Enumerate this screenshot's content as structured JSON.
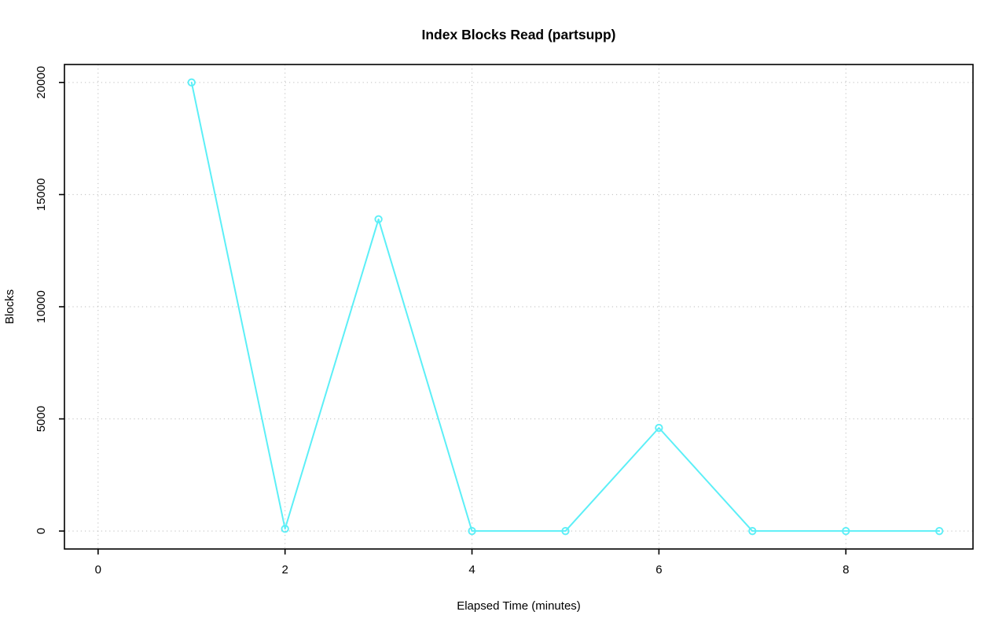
{
  "page": {
    "background": "#FFFFFF"
  },
  "chart_data": {
    "type": "line",
    "title": "Index Blocks Read (partsupp)",
    "xlabel": "Elapsed Time (minutes)",
    "ylabel": "Blocks",
    "x": [
      1,
      2,
      3,
      4,
      5,
      6,
      7,
      8,
      9
    ],
    "y": [
      20000,
      100,
      13900,
      0,
      0,
      4600,
      0,
      0,
      0
    ],
    "x_ticks": [
      0,
      2,
      4,
      6,
      8
    ],
    "y_ticks": [
      0,
      5000,
      10000,
      15000,
      20000
    ],
    "xlim": [
      -0.36,
      9.36
    ],
    "ylim": [
      -800,
      20800
    ],
    "grid": true,
    "grid_style": "dotted",
    "legend_position": "none",
    "line_color": "#5CEFF7",
    "marker": "open-circle",
    "grid_color": "#BDBDBD",
    "axis_color": "#000000",
    "text_color": "#000000"
  }
}
